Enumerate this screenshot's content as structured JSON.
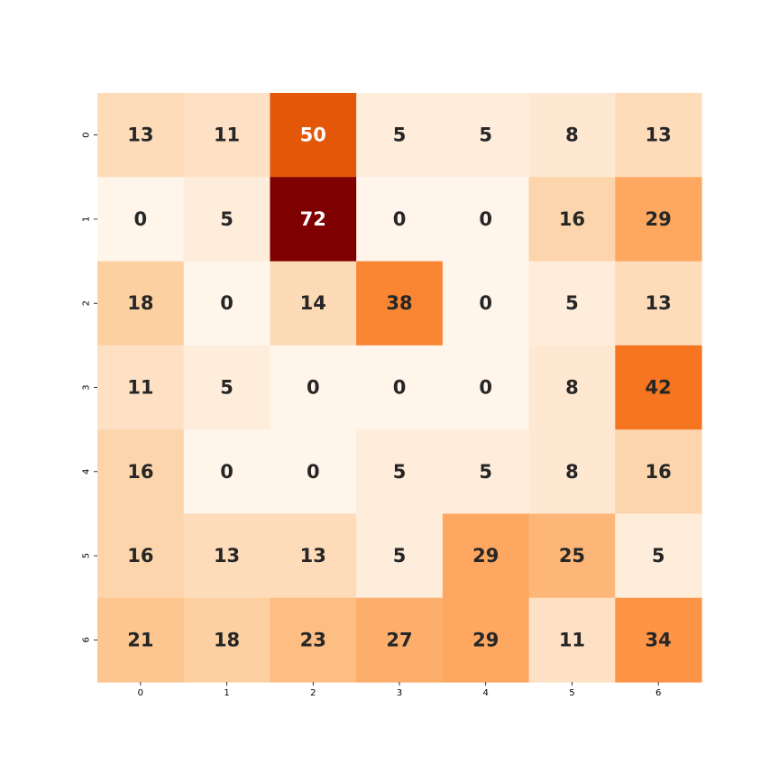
{
  "chart_data": {
    "type": "heatmap",
    "title": "",
    "xlabel": "",
    "ylabel": "",
    "x_ticks": [
      "0",
      "1",
      "2",
      "3",
      "4",
      "5",
      "6"
    ],
    "y_ticks": [
      "0",
      "1",
      "2",
      "3",
      "4",
      "5",
      "6"
    ],
    "values": [
      [
        13,
        11,
        50,
        5,
        5,
        8,
        13
      ],
      [
        0,
        5,
        72,
        0,
        0,
        16,
        29
      ],
      [
        18,
        0,
        14,
        38,
        0,
        5,
        13
      ],
      [
        11,
        5,
        0,
        0,
        0,
        8,
        42
      ],
      [
        16,
        0,
        0,
        5,
        5,
        8,
        16
      ],
      [
        16,
        13,
        13,
        5,
        29,
        25,
        5
      ],
      [
        21,
        18,
        23,
        27,
        29,
        11,
        34
      ]
    ],
    "value_range": [
      0,
      72
    ],
    "colormap": "Oranges",
    "annotated": true,
    "colorbar": false,
    "annotation_colors": {
      "dark": "#262626",
      "light": "#ffffff"
    }
  }
}
